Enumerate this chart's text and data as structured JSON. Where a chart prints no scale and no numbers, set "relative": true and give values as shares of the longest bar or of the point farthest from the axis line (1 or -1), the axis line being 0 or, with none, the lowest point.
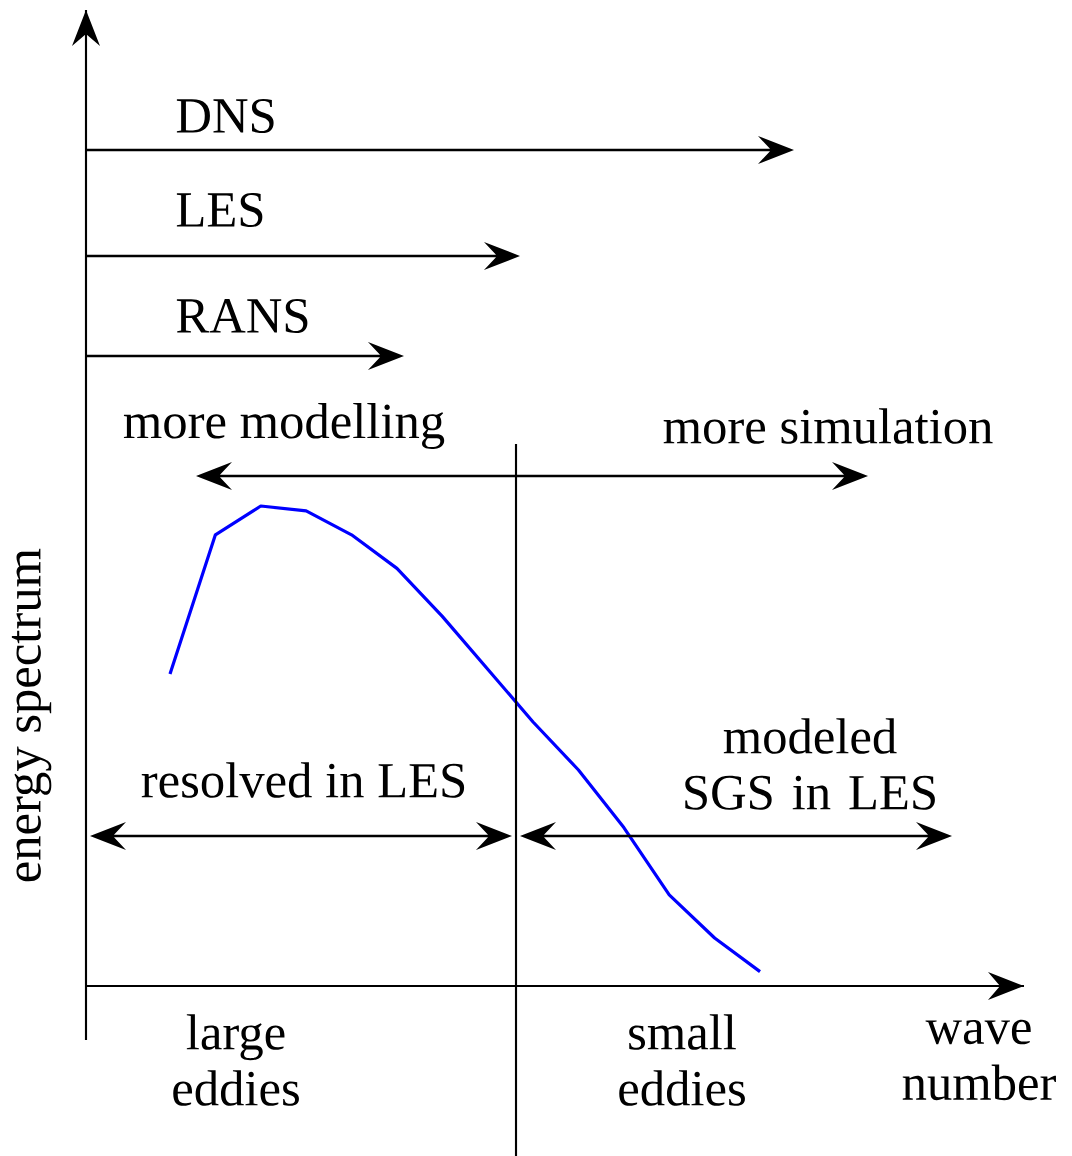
{
  "chart_data": {
    "type": "line",
    "relative": true,
    "xlabel": "wave number",
    "ylabel": "energy spectrum",
    "categories": [
      null,
      null,
      null,
      null,
      null,
      null,
      null,
      null,
      null,
      null,
      null,
      null,
      null,
      null
    ],
    "series": [
      {
        "color": "#0000ff",
        "values": [
          0.65,
          0.94,
          1.0,
          0.99,
          0.94,
          0.87,
          0.77,
          0.66,
          0.55,
          0.45,
          0.33,
          0.19,
          0.1,
          0.03
        ]
      }
    ],
    "annotations": [
      "DNS",
      "LES",
      "RANS",
      "more modelling",
      "more simulation",
      "resolved in LES",
      "modeled SGS in LES",
      "large eddies",
      "small eddies"
    ]
  }
}
